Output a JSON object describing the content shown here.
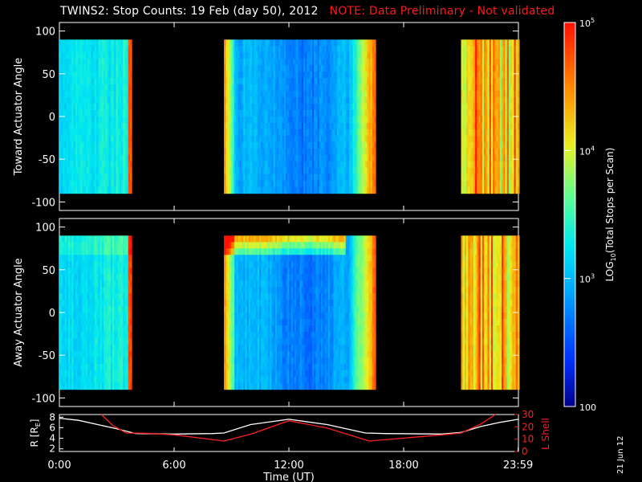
{
  "header": {
    "title": "TWINS2: Stop Counts: 19 Feb (day  50), 2012",
    "note": "NOTE: Data Preliminary - Not validated"
  },
  "stamp": "21 Jun 12",
  "colors": {
    "background": "#000000",
    "axes": "#ffffff",
    "note": "#ff1a1a",
    "r_line": "#ffffff",
    "lshell_line": "#ff2020"
  },
  "chart_data": [
    {
      "type": "heatmap",
      "panel": "toward",
      "ylabel": "Toward Actuator Angle",
      "ylim": [
        -110,
        110
      ],
      "yticks": [
        100,
        50,
        0,
        -50,
        -100
      ],
      "xlim_hours": [
        0,
        24
      ],
      "coverage_hours": [
        [
          0,
          3.75
        ],
        [
          8.6,
          16.5
        ],
        [
          21.0,
          24
        ]
      ],
      "data_angle_range": [
        -90,
        90
      ],
      "colorscale": "log10 counts, blue to red"
    },
    {
      "type": "heatmap",
      "panel": "away",
      "ylabel": "Away Actuator Angle",
      "ylim": [
        -110,
        110
      ],
      "yticks": [
        100,
        50,
        0,
        -50,
        -100
      ],
      "xlim_hours": [
        0,
        24
      ],
      "coverage_hours": [
        [
          0,
          3.75
        ],
        [
          8.6,
          16.5
        ],
        [
          21.0,
          24
        ]
      ],
      "data_angle_range": [
        -90,
        90
      ],
      "colorscale": "log10 counts, blue to red"
    },
    {
      "type": "line",
      "panel": "orbit",
      "xlabel": "Time (UT)",
      "xticks": [
        "0:00",
        "6:00",
        "12:00",
        "18:00",
        "23:59"
      ],
      "xtick_hours": [
        0,
        6,
        12,
        18,
        23.983
      ],
      "ylabel_left": "R [R",
      "ylabel_left_sub": "E",
      "ylabel_left_end": "]",
      "ylabel_right": "L Shell",
      "ylim_left": [
        1.5,
        8.5
      ],
      "yticks_left": [
        8,
        6,
        4,
        2
      ],
      "ylim_right": [
        0,
        30
      ],
      "yticks_right": [
        30,
        20,
        10,
        0
      ],
      "series": [
        {
          "axis": "left",
          "color": "#ffffff",
          "x": [
            0,
            1,
            2,
            3,
            4,
            6,
            8,
            8.6,
            10,
            12,
            14,
            16,
            17,
            20,
            21,
            22,
            23,
            24
          ],
          "y": [
            7.8,
            7.4,
            6.6,
            5.8,
            4.9,
            4.8,
            4.9,
            5.0,
            6.6,
            7.6,
            6.6,
            5.0,
            4.9,
            4.8,
            5.1,
            6.2,
            7.0,
            7.6
          ]
        },
        {
          "axis": "right",
          "color": "#ff2020",
          "x": [
            2.2,
            2.8,
            3.5,
            4.5,
            6,
            8.6,
            10,
            12,
            14,
            16.2,
            17,
            20,
            21,
            22,
            22.8
          ],
          "y": [
            30,
            21,
            15,
            14.8,
            13.5,
            8.5,
            14,
            25,
            19,
            8.5,
            9.5,
            13.5,
            15,
            22,
            31
          ]
        }
      ]
    }
  ],
  "colorbar": {
    "label": "LOG",
    "label_sub": "10",
    "label_rest": "(Total Stops per Scan)",
    "ticks": [
      {
        "base": "10",
        "exp": "5",
        "value": 100000
      },
      {
        "base": "10",
        "exp": "4",
        "value": 10000
      },
      {
        "base": "10",
        "exp": "3",
        "value": 1000
      },
      {
        "base": "100",
        "exp": "",
        "value": 100
      }
    ],
    "range": [
      100,
      100000
    ]
  }
}
